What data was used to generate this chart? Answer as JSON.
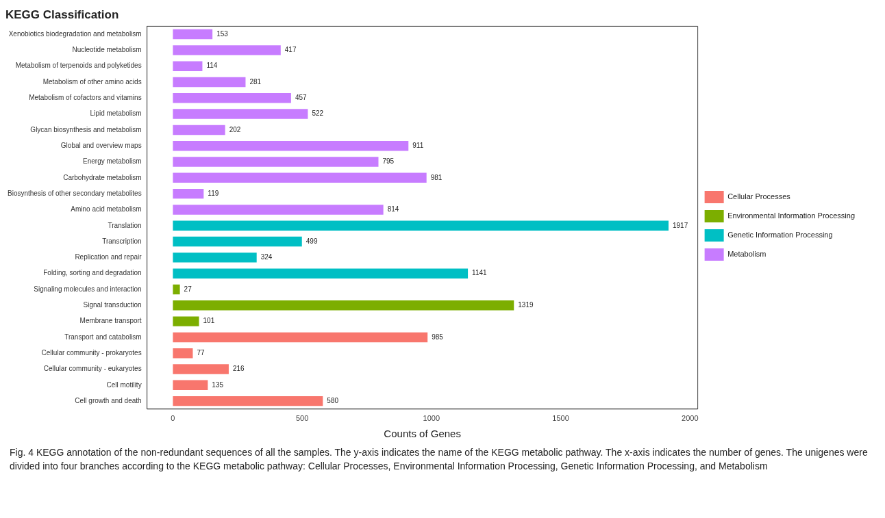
{
  "chart_data": {
    "type": "bar",
    "orientation": "horizontal",
    "title": "KEGG Classification",
    "xlabel": "Counts of Genes",
    "categories": [
      "Xenobiotics biodegradation and metabolism",
      "Nucleotide metabolism",
      "Metabolism of terpenoids and polyketides",
      "Metabolism of other amino acids",
      "Metabolism of cofactors and vitamins",
      "Lipid metabolism",
      "Glycan biosynthesis and metabolism",
      "Global and overview maps",
      "Energy metabolism",
      "Carbohydrate metabolism",
      "Biosynthesis of other secondary metabolites",
      "Amino acid metabolism",
      "Translation",
      "Transcription",
      "Replication and repair",
      "Folding, sorting and degradation",
      "Signaling molecules and interaction",
      "Signal transduction",
      "Membrane transport",
      "Transport and catabolism",
      "Cellular community - prokaryotes",
      "Cellular community - eukaryotes",
      "Cell motility",
      "Cell growth and death"
    ],
    "series": [
      {
        "name": "Cellular Processes",
        "color": "#f8766d",
        "values": [
          null,
          null,
          null,
          null,
          null,
          null,
          null,
          null,
          null,
          null,
          null,
          null,
          null,
          null,
          null,
          null,
          null,
          null,
          null,
          985,
          77,
          216,
          135,
          580
        ]
      },
      {
        "name": "Environmental Information Processing",
        "color": "#7cae00",
        "values": [
          null,
          null,
          null,
          null,
          null,
          null,
          null,
          null,
          null,
          null,
          null,
          null,
          null,
          null,
          null,
          null,
          27,
          1319,
          101,
          null,
          null,
          null,
          null,
          null
        ]
      },
      {
        "name": "Genetic Information Processing",
        "color": "#00bfc4",
        "values": [
          null,
          null,
          null,
          null,
          null,
          null,
          null,
          null,
          null,
          null,
          null,
          null,
          1917,
          499,
          324,
          1141,
          null,
          null,
          null,
          null,
          null,
          null,
          null,
          null
        ]
      },
      {
        "name": "Metabolism",
        "color": "#c77cff",
        "values": [
          153,
          417,
          114,
          281,
          457,
          522,
          202,
          911,
          795,
          981,
          119,
          814,
          null,
          null,
          null,
          null,
          null,
          null,
          null,
          null,
          null,
          null,
          null,
          null
        ]
      }
    ],
    "xlim": [
      -100,
      2030
    ],
    "xticks": [
      0,
      500,
      1000,
      1500,
      2000
    ],
    "data_labels": true,
    "legend": "right",
    "annotations": [
      "Fig. 4 KEGG annotation of the non-redundant sequences of all the samples. The y-axis indicates the name of the KEGG metabolic pathway. The x-axis indicates the number of genes. The unigenes were divided into four branches according to the KEGG metabolic pathway: Cellular Processes, Environmental Information Processing, Genetic Information Processing, and Metabolism"
    ]
  }
}
